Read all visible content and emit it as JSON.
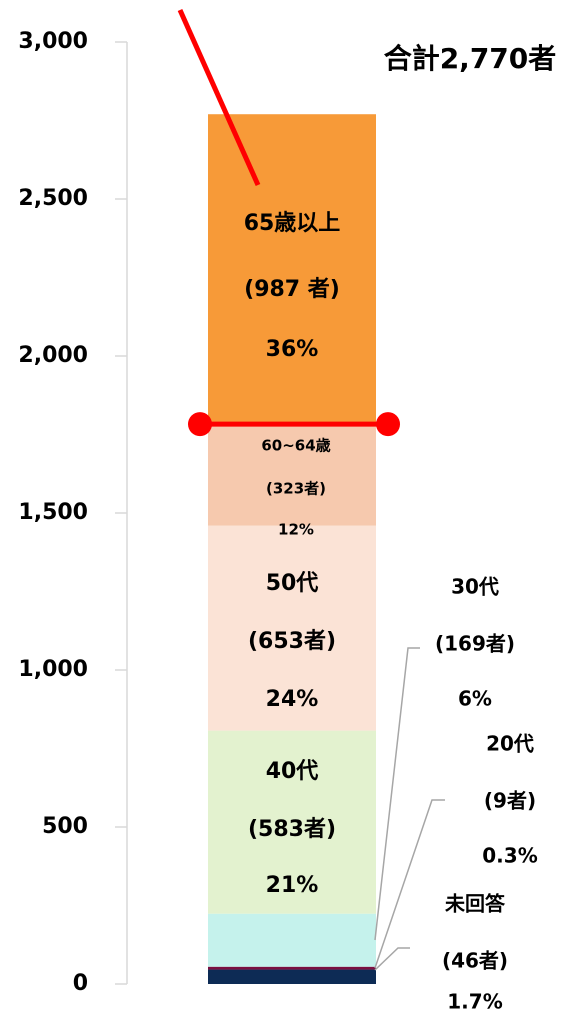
{
  "chart_data": {
    "type": "stacked_bar",
    "annotation": "合計2,770者",
    "ylim": [
      0,
      3000
    ],
    "yticks": [
      0,
      {
        "value": 500,
        "label": "500"
      },
      {
        "value": 1000,
        "label": "1,000"
      },
      {
        "value": 1500,
        "label": "1,500"
      },
      {
        "value": 2000,
        "label": "2,000"
      },
      {
        "value": 2500,
        "label": "2,500"
      },
      {
        "value": 3000,
        "label": "3,000"
      }
    ],
    "series": [
      {
        "name": "未回答",
        "color": "#0d2b55",
        "values": [
          46
        ],
        "value_labels": [
          "(46者)"
        ],
        "share_label": "1.7%"
      },
      {
        "name": "20代",
        "color": "#7a1040",
        "values": [
          9
        ],
        "value_labels": [
          "(9者)"
        ],
        "share_label": "0.3%"
      },
      {
        "name": "30代",
        "color": "#c5f2ec",
        "values": [
          169
        ],
        "value_labels": [
          "(169者)"
        ],
        "share_label": "6%"
      },
      {
        "name": "40代",
        "color": "#e3f2cf",
        "values": [
          583
        ],
        "value_labels": [
          "(583者)"
        ],
        "share_label": "21%"
      },
      {
        "name": "50代",
        "color": "#fbe3d6",
        "values": [
          653
        ],
        "value_labels": [
          "(653者)"
        ],
        "share_label": "24%"
      },
      {
        "name": "60~64歳",
        "color": "#f6c9ae",
        "values": [
          323
        ],
        "value_labels": [
          "(323者)"
        ],
        "share_label": "12%"
      },
      {
        "name": "65歳以上",
        "color": "#f79a38",
        "values": [
          987
        ],
        "value_labels": [
          "(987 者)"
        ],
        "share_label": "36%"
      }
    ]
  }
}
